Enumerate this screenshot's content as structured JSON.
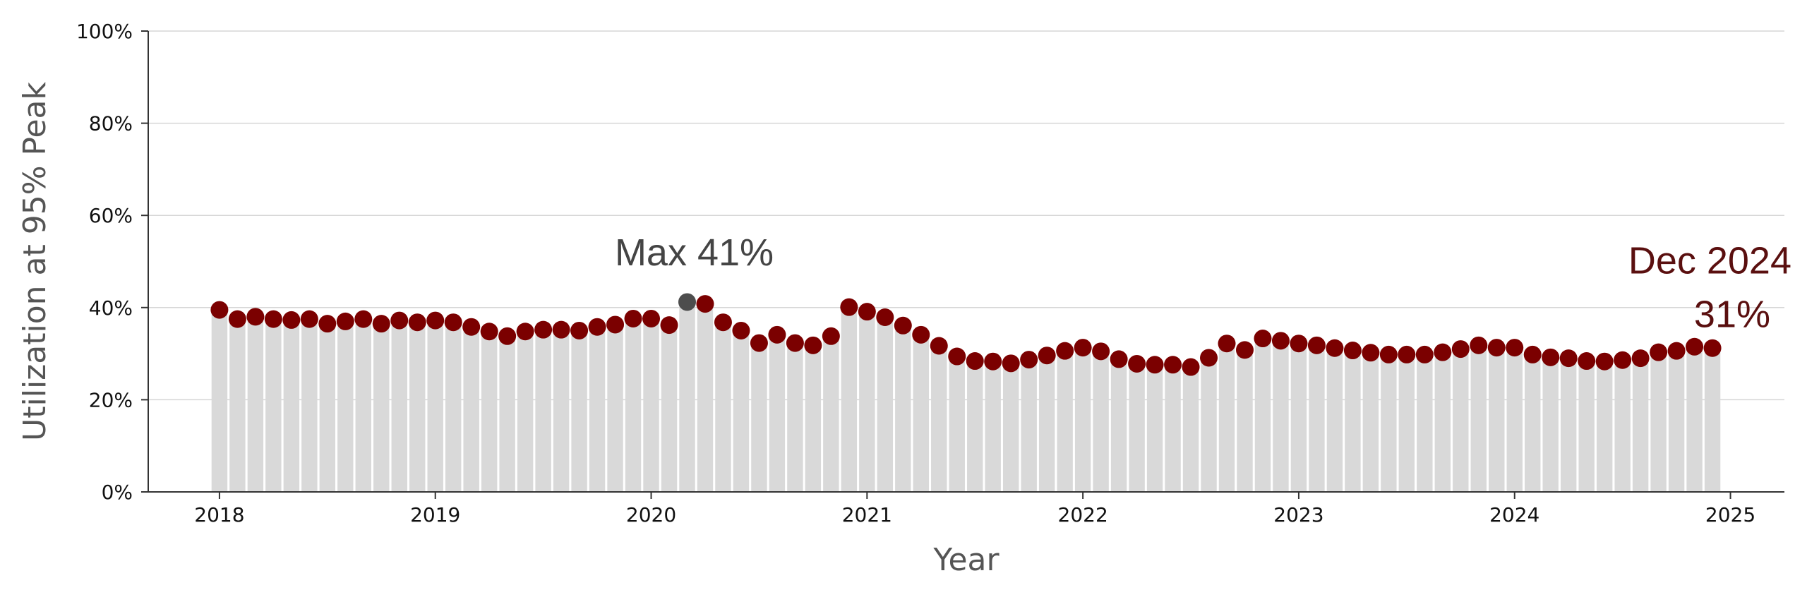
{
  "chart_data": {
    "type": "bar",
    "title": "",
    "xlabel": "Year",
    "ylabel": "Utilization at 95% Peak",
    "ylim": [
      0,
      100
    ],
    "y_ticks": [
      "0%",
      "20%",
      "40%",
      "60%",
      "80%",
      "100%"
    ],
    "y_tick_values": [
      0,
      20,
      40,
      60,
      80,
      100
    ],
    "x_ticks": [
      "2018",
      "2019",
      "2020",
      "2021",
      "2022",
      "2023",
      "2024",
      "2025"
    ],
    "x_tick_values": [
      2018,
      2019,
      2020,
      2021,
      2022,
      2023,
      2024,
      2025
    ],
    "grid": "horizontal",
    "x_start": "2018-01",
    "x_end": "2024-12",
    "values": [
      39.5,
      37.5,
      38,
      37.5,
      37.3,
      37.5,
      36.5,
      37,
      37.5,
      36.5,
      37.2,
      36.8,
      37.2,
      36.8,
      35.8,
      34.8,
      33.8,
      34.8,
      35.2,
      35.2,
      35,
      35.8,
      36.3,
      37.6,
      37.6,
      36.2,
      41.2,
      40.8,
      36.8,
      35,
      32.3,
      34.1,
      32.3,
      31.8,
      33.8,
      40.1,
      39.1,
      37.9,
      36.1,
      34.1,
      31.7,
      29.4,
      28.4,
      28.3,
      27.9,
      28.7,
      29.6,
      30.6,
      31.3,
      30.5,
      28.8,
      27.8,
      27.6,
      27.6,
      27.1,
      29.1,
      32.2,
      30.8,
      33.3,
      32.8,
      32.2,
      31.8,
      31.2,
      30.7,
      30.2,
      29.8,
      29.8,
      29.8,
      30.3,
      31,
      31.8,
      31.3,
      31.3,
      29.8,
      29.2,
      29,
      28.4,
      28.3,
      28.6,
      29,
      30.3,
      30.6,
      31.5,
      31.2
    ],
    "max_index": 26,
    "colors": {
      "bar": "#d9d9d9",
      "point": "#7b0000",
      "max_point": "#4d4d4d",
      "grid": "#d6d6d6",
      "axis": "#333333"
    },
    "annotations": {
      "max": {
        "text": "Max 41%",
        "color": "#444444"
      },
      "last_line1": "Dec 2024",
      "last_line2": "31%",
      "last_color": "#5a0f0f"
    }
  }
}
